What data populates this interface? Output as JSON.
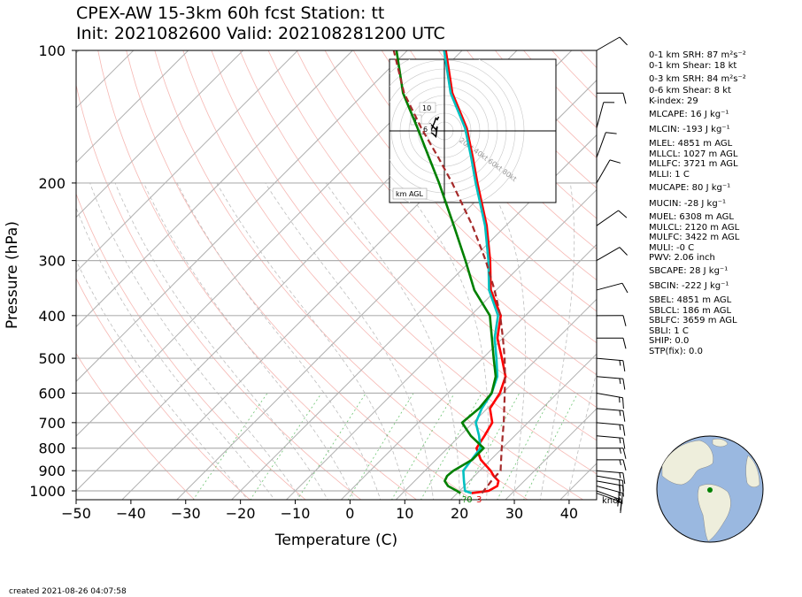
{
  "title": {
    "line1": "CPEX-AW 15-3km  60h fcst  Station: tt",
    "line2": "Init: 2021082600  Valid: 202108281200 UTC"
  },
  "chart_data": {
    "type": "line",
    "subtype": "skew-T log-p sounding",
    "xlabel": "Temperature (C)",
    "ylabel": "Pressure (hPa)",
    "xlim": [
      -50,
      45
    ],
    "ylim": [
      1050,
      100
    ],
    "y_scale": "log",
    "x_ticks": [
      -50,
      -40,
      -30,
      -20,
      -10,
      0,
      10,
      20,
      30,
      40
    ],
    "x_tick_labels": [
      "−50",
      "−40",
      "−30",
      "−20",
      "−10",
      "0",
      "10",
      "20",
      "30",
      "40"
    ],
    "y_ticks": [
      1000,
      900,
      800,
      700,
      600,
      500,
      400,
      300,
      200,
      100
    ],
    "y_tick_labels": [
      "1000",
      "900",
      "800",
      "700",
      "600",
      "500",
      "400",
      "300",
      "200",
      "100"
    ],
    "grid": true,
    "series": [
      {
        "name": "temperature",
        "color": "#ff0000",
        "points": [
          [
            1012,
            22.6
          ],
          [
            1000,
            25.3
          ],
          [
            975,
            26.0
          ],
          [
            950,
            25.3
          ],
          [
            925,
            23.5
          ],
          [
            900,
            22.0
          ],
          [
            850,
            18.2
          ],
          [
            800,
            15.3
          ],
          [
            750,
            14.5
          ],
          [
            700,
            13.5
          ],
          [
            650,
            10.5
          ],
          [
            600,
            9.5
          ],
          [
            550,
            7.5
          ],
          [
            500,
            3.5
          ],
          [
            450,
            -1.0
          ],
          [
            400,
            -4.5
          ],
          [
            350,
            -11.0
          ],
          [
            300,
            -16.5
          ],
          [
            250,
            -23.5
          ],
          [
            200,
            -33.0
          ],
          [
            175,
            -38.5
          ],
          [
            150,
            -45.0
          ],
          [
            125,
            -54.0
          ],
          [
            100,
            -63.0
          ]
        ]
      },
      {
        "name": "wet-bulb",
        "color": "#00c0c0",
        "points": [
          [
            1012,
            22.6
          ],
          [
            1000,
            21.0
          ],
          [
            950,
            19.0
          ],
          [
            900,
            17.0
          ],
          [
            850,
            16.5
          ],
          [
            800,
            16.0
          ],
          [
            750,
            13.5
          ],
          [
            700,
            10.5
          ],
          [
            650,
            9.0
          ],
          [
            600,
            8.0
          ],
          [
            550,
            6.0
          ],
          [
            500,
            2.5
          ],
          [
            450,
            -1.5
          ],
          [
            400,
            -5.0
          ],
          [
            350,
            -11.3
          ],
          [
            300,
            -16.8
          ],
          [
            250,
            -23.8
          ],
          [
            200,
            -33.3
          ],
          [
            175,
            -38.8
          ],
          [
            150,
            -45.3
          ],
          [
            125,
            -54.3
          ],
          [
            100,
            -63.3
          ]
        ]
      },
      {
        "name": "dewpoint",
        "color": "#008000",
        "points": [
          [
            1012,
            20.6
          ],
          [
            1000,
            19.5
          ],
          [
            975,
            17.0
          ],
          [
            950,
            15.5
          ],
          [
            925,
            15.0
          ],
          [
            900,
            15.2
          ],
          [
            850,
            16.6
          ],
          [
            800,
            16.6
          ],
          [
            750,
            12.0
          ],
          [
            700,
            8.0
          ],
          [
            650,
            8.5
          ],
          [
            600,
            8.0
          ],
          [
            550,
            5.7
          ],
          [
            500,
            2.0
          ],
          [
            450,
            -2.0
          ],
          [
            400,
            -6.5
          ],
          [
            350,
            -14.0
          ],
          [
            300,
            -21.0
          ],
          [
            250,
            -29.5
          ],
          [
            200,
            -40.0
          ],
          [
            175,
            -46.5
          ],
          [
            150,
            -54.0
          ],
          [
            125,
            -63.0
          ],
          [
            100,
            -72.0
          ]
        ]
      },
      {
        "name": "parcel",
        "color": "#a52a2a",
        "dashed": true,
        "points": [
          [
            1012,
            24.5
          ],
          [
            950,
            24.0
          ],
          [
            900,
            23.8
          ],
          [
            850,
            21.9
          ],
          [
            800,
            19.9
          ],
          [
            750,
            17.8
          ],
          [
            700,
            15.6
          ],
          [
            650,
            13.1
          ],
          [
            600,
            10.4
          ],
          [
            550,
            7.4
          ],
          [
            500,
            4.0
          ],
          [
            450,
            0.0
          ],
          [
            400,
            -4.6
          ],
          [
            350,
            -10.3
          ],
          [
            300,
            -17.3
          ],
          [
            250,
            -26.1
          ],
          [
            200,
            -37.6
          ],
          [
            175,
            -44.8
          ],
          [
            150,
            -53.3
          ],
          [
            125,
            -62.8
          ],
          [
            100,
            -72.5
          ]
        ]
      }
    ],
    "surface_labels": {
      "dewpoint": "?0",
      "temperature": "3"
    },
    "wind_barb_unit": "knot",
    "wind_barbs": [
      {
        "p": 1012,
        "dir": 110,
        "kt": 15
      },
      {
        "p": 1000,
        "dir": 110,
        "kt": 18
      },
      {
        "p": 975,
        "dir": 105,
        "kt": 20
      },
      {
        "p": 950,
        "dir": 100,
        "kt": 20
      },
      {
        "p": 925,
        "dir": 100,
        "kt": 20
      },
      {
        "p": 900,
        "dir": 95,
        "kt": 18
      },
      {
        "p": 850,
        "dir": 90,
        "kt": 15
      },
      {
        "p": 800,
        "dir": 90,
        "kt": 15
      },
      {
        "p": 750,
        "dir": 95,
        "kt": 15
      },
      {
        "p": 700,
        "dir": 95,
        "kt": 15
      },
      {
        "p": 650,
        "dir": 95,
        "kt": 15
      },
      {
        "p": 600,
        "dir": 100,
        "kt": 15
      },
      {
        "p": 550,
        "dir": 95,
        "kt": 15
      },
      {
        "p": 500,
        "dir": 95,
        "kt": 15
      },
      {
        "p": 450,
        "dir": 90,
        "kt": 10
      },
      {
        "p": 400,
        "dir": 90,
        "kt": 10
      },
      {
        "p": 350,
        "dir": 75,
        "kt": 10
      },
      {
        "p": 300,
        "dir": 60,
        "kt": 10
      },
      {
        "p": 250,
        "dir": 55,
        "kt": 10
      },
      {
        "p": 200,
        "dir": 30,
        "kt": 10
      },
      {
        "p": 175,
        "dir": 20,
        "kt": 10
      },
      {
        "p": 150,
        "dir": 15,
        "kt": 10
      },
      {
        "p": 125,
        "dir": 90,
        "kt": 10
      },
      {
        "p": 100,
        "dir": 60,
        "kt": 10
      }
    ],
    "hodograph": {
      "unit_label": "km AGL",
      "rings_kt": [
        20,
        40,
        60,
        80
      ],
      "ring_labels": [
        "20kt",
        "40kt",
        "60kt",
        "80kt"
      ],
      "height_labels": [
        "1",
        "6",
        "10"
      ],
      "points": [
        [
          -17,
          -1
        ],
        [
          -15,
          -2
        ],
        [
          -13,
          -1
        ],
        [
          -12,
          2
        ],
        [
          -10,
          5
        ],
        [
          -8,
          3
        ],
        [
          -6,
          1
        ],
        [
          -5,
          3
        ],
        [
          -6,
          -4
        ],
        [
          -8,
          -2
        ],
        [
          -10,
          -1
        ],
        [
          -7,
          6
        ],
        [
          -6,
          9
        ],
        [
          -5,
          8
        ],
        [
          -4,
          10
        ]
      ]
    }
  },
  "indices": [
    {
      "key": "0-1 km SRH:",
      "value": "87 m²s⁻²"
    },
    {
      "key": "0-1 km Shear:",
      "value": "18 kt"
    },
    {
      "key": "0-3 km SRH:",
      "value": "84 m²s⁻²"
    },
    {
      "key": "0-6 km Shear:",
      "value": "8 kt"
    },
    {
      "key": "K-index:",
      "value": "29"
    },
    {
      "key": "MLCAPE:",
      "value": "16 J kg⁻¹"
    },
    {
      "key": "MLCIN:",
      "value": "-193 J kg⁻¹"
    },
    {
      "key": "MLEL:",
      "value": "4851 m AGL"
    },
    {
      "key": "MLLCL:",
      "value": "1027 m AGL"
    },
    {
      "key": "MLLFC:",
      "value": "3721 m AGL"
    },
    {
      "key": "MLLI:",
      "value": "1 C"
    },
    {
      "key": "MUCAPE:",
      "value": "80 J kg⁻¹"
    },
    {
      "key": "MUCIN:",
      "value": "-28 J kg⁻¹"
    },
    {
      "key": "MUEL:",
      "value": "6308 m AGL"
    },
    {
      "key": "MULCL:",
      "value": "2120 m AGL"
    },
    {
      "key": "MULFC:",
      "value": "3422 m AGL"
    },
    {
      "key": "MULI:",
      "value": "-0 C"
    },
    {
      "key": "PWV:",
      "value": "2.06 inch"
    },
    {
      "key": "SBCAPE:",
      "value": "28 J kg⁻¹"
    },
    {
      "key": "SBCIN:",
      "value": "-222 J kg⁻¹"
    },
    {
      "key": "SBEL:",
      "value": "4851 m AGL"
    },
    {
      "key": "SBLCL:",
      "value": "186 m AGL"
    },
    {
      "key": "SBLFC:",
      "value": "3659 m AGL"
    },
    {
      "key": "SBLI:",
      "value": "1 C"
    },
    {
      "key": "SHIP:",
      "value": "0.0"
    },
    {
      "key": "STP(fix):",
      "value": "0.0"
    }
  ],
  "globe": {
    "ocean_color": "#9ab8e0",
    "land_color": "#eeeedc",
    "marker_color": "#008000"
  },
  "footer": "created 2021-08-26 04:07:58"
}
